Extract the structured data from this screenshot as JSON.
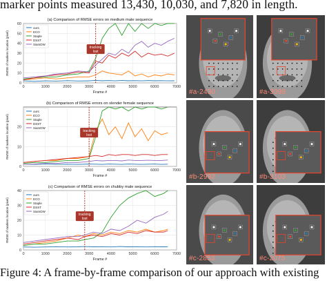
{
  "header_text": "marker points measured 13,430, 10,030, and 7,820 in length.",
  "caption": {
    "prefix": "Figure 4:",
    "text": " A frame-by-frame comparison of our approach with existing"
  },
  "colors": {
    "ours": "#1f77b4",
    "eco": "#ff7f0e",
    "staple": "#2ca02c",
    "dsst": "#d62728",
    "siamdw": "#9467bd",
    "tracking_lost": "#a8362a",
    "frame_label": "#ff8a78",
    "box_outline": "#e8452c"
  },
  "chart_data": [
    {
      "type": "line",
      "title": "(a) Comparison of RMSE errors on medium male sequence",
      "xlabel": "Frame #",
      "ylabel": "RMSE of markers location (pixel)",
      "xlim": [
        0,
        7000
      ],
      "xticks": [
        0,
        1000,
        2000,
        3000,
        4000,
        5000,
        6000,
        7000
      ],
      "ylim": [
        0,
        60
      ],
      "yticks": [
        0,
        10,
        20,
        30,
        40,
        50,
        60
      ],
      "legend": [
        "ours",
        "ECO",
        "Staple",
        "DSST",
        "SiamDW"
      ],
      "annotation": {
        "text_line1": "tracking",
        "text_line2": "lost",
        "x": 3300
      },
      "x": [
        0,
        500,
        1000,
        1500,
        2000,
        2500,
        3000,
        3300,
        3600,
        3900,
        4200,
        4500,
        4800,
        5100,
        5400,
        5700,
        6000,
        6300,
        6600,
        6900
      ],
      "series": [
        {
          "name": "ours",
          "values": [
            2,
            1.5,
            2,
            1.8,
            2.2,
            1.9,
            2,
            2.5,
            2.1,
            2.3,
            2,
            2.4,
            2.1,
            2.2,
            2,
            2.3,
            2.1,
            2.2,
            2,
            2.1
          ]
        },
        {
          "name": "ECO",
          "values": [
            3,
            4,
            5,
            4,
            5,
            6,
            6,
            8,
            12,
            10,
            9,
            8,
            12,
            7,
            9,
            6,
            8,
            7,
            9,
            8
          ]
        },
        {
          "name": "Staple",
          "values": [
            4,
            5,
            6,
            6,
            8,
            9,
            12,
            25,
            45,
            55,
            60,
            48,
            60,
            52,
            60,
            55,
            60,
            58,
            60,
            60
          ]
        },
        {
          "name": "DSST",
          "values": [
            3,
            5,
            7,
            8,
            9,
            11,
            10,
            22,
            20,
            28,
            25,
            30,
            27,
            32,
            26,
            30,
            28,
            29,
            27,
            30
          ]
        },
        {
          "name": "SiamDW",
          "values": [
            5,
            6,
            7,
            9,
            10,
            12,
            11,
            18,
            24,
            30,
            28,
            34,
            30,
            38,
            42,
            36,
            40,
            38,
            42,
            45
          ]
        }
      ]
    },
    {
      "type": "line",
      "title": "(b) Comparison of RMSE errors on slender female sequence",
      "xlabel": "Frame #",
      "ylabel": "RMSE of markers location (pixel)",
      "xlim": [
        0,
        7000
      ],
      "xticks": [
        0,
        1000,
        2000,
        3000,
        4000,
        5000,
        6000,
        7000
      ],
      "ylim": [
        0,
        30
      ],
      "yticks": [
        0,
        10,
        20
      ],
      "legend": [
        "ours",
        "ECO",
        "Staple",
        "DSST",
        "SiamDW"
      ],
      "annotation": {
        "text_line1": "tracking",
        "text_line2": "lost",
        "x": 3000
      },
      "x": [
        0,
        500,
        1000,
        1500,
        2000,
        2500,
        3000,
        3300,
        3600,
        3900,
        4200,
        4500,
        4800,
        5100,
        5400,
        5700,
        6000,
        6300,
        6600
      ],
      "series": [
        {
          "name": "ours",
          "values": [
            1,
            1,
            1.2,
            1,
            1.1,
            1,
            1.2,
            1.1,
            1,
            1.2,
            1.1,
            1,
            1.2,
            1.1,
            1,
            1.1,
            1.2,
            1,
            1.1
          ]
        },
        {
          "name": "ECO",
          "values": [
            2,
            2.5,
            3,
            3,
            4,
            4,
            5,
            18,
            24,
            16,
            20,
            14,
            22,
            15,
            19,
            13,
            18,
            16,
            17
          ]
        },
        {
          "name": "Staple",
          "values": [
            1.5,
            2,
            2,
            2.5,
            3,
            3,
            4,
            15,
            28,
            30,
            29,
            30,
            28,
            30,
            29,
            30,
            30,
            29,
            30
          ]
        },
        {
          "name": "DSST",
          "values": [
            2,
            2.5,
            3,
            3.5,
            4,
            4.5,
            5,
            5.5,
            5,
            6,
            5.5,
            6,
            6,
            5.5,
            6,
            6,
            5.5,
            6,
            6
          ]
        },
        {
          "name": "SiamDW",
          "values": [
            1,
            1.2,
            1.5,
            1.5,
            2,
            2,
            2.5,
            3,
            2.8,
            3,
            3,
            2.8,
            3.2,
            3,
            3,
            3.1,
            3,
            3,
            3.2
          ]
        }
      ]
    },
    {
      "type": "line",
      "title": "(c) Comparison of RMSE errors on chubby male sequence",
      "xlabel": "Frame #",
      "ylabel": "RMSE of markers location (pixel)",
      "xlim": [
        0,
        7000
      ],
      "xticks": [
        0,
        1000,
        2000,
        3000,
        4000,
        5000,
        6000,
        7000
      ],
      "ylim": [
        0,
        40
      ],
      "yticks": [
        0,
        10,
        20,
        30,
        40
      ],
      "legend": [
        "ours",
        "ECO",
        "Staple",
        "DSST",
        "SiamDW"
      ],
      "annotation": {
        "text_line1": "tracking",
        "text_line2": "lost",
        "x": 2800
      },
      "x": [
        0,
        500,
        1000,
        1500,
        2000,
        2500,
        2800,
        3200,
        3600,
        4000,
        4400,
        4800,
        5200,
        5600,
        6000,
        6400,
        6600
      ],
      "series": [
        {
          "name": "ours",
          "values": [
            2,
            1.8,
            2,
            2.2,
            2,
            2.1,
            2.3,
            2.1,
            2.2,
            2,
            2.3,
            2.1,
            2.2,
            2,
            2.2,
            2.1,
            2.2
          ]
        },
        {
          "name": "ECO",
          "values": [
            3,
            4,
            5,
            6,
            8,
            10,
            9,
            11,
            10,
            12,
            11,
            13,
            12,
            14,
            12,
            13,
            14
          ]
        },
        {
          "name": "Staple",
          "values": [
            3,
            4,
            4,
            5,
            6,
            6,
            7,
            8,
            12,
            22,
            30,
            35,
            38,
            40,
            36,
            38,
            40
          ]
        },
        {
          "name": "DSST",
          "values": [
            4,
            5,
            6,
            7,
            8,
            7,
            9,
            10,
            9,
            11,
            10,
            12,
            11,
            13,
            12,
            12,
            13
          ]
        },
        {
          "name": "SiamDW",
          "values": [
            5,
            6,
            7,
            8,
            9,
            9,
            10,
            12,
            11,
            14,
            13,
            16,
            20,
            18,
            22,
            24,
            26
          ]
        }
      ]
    }
  ],
  "frames": [
    {
      "label": "#a-2430"
    },
    {
      "label": "#a-3098"
    },
    {
      "label": "#b-2992"
    },
    {
      "label": "#b-3103"
    },
    {
      "label": "#c-2853"
    },
    {
      "label": "#c-2075"
    }
  ]
}
